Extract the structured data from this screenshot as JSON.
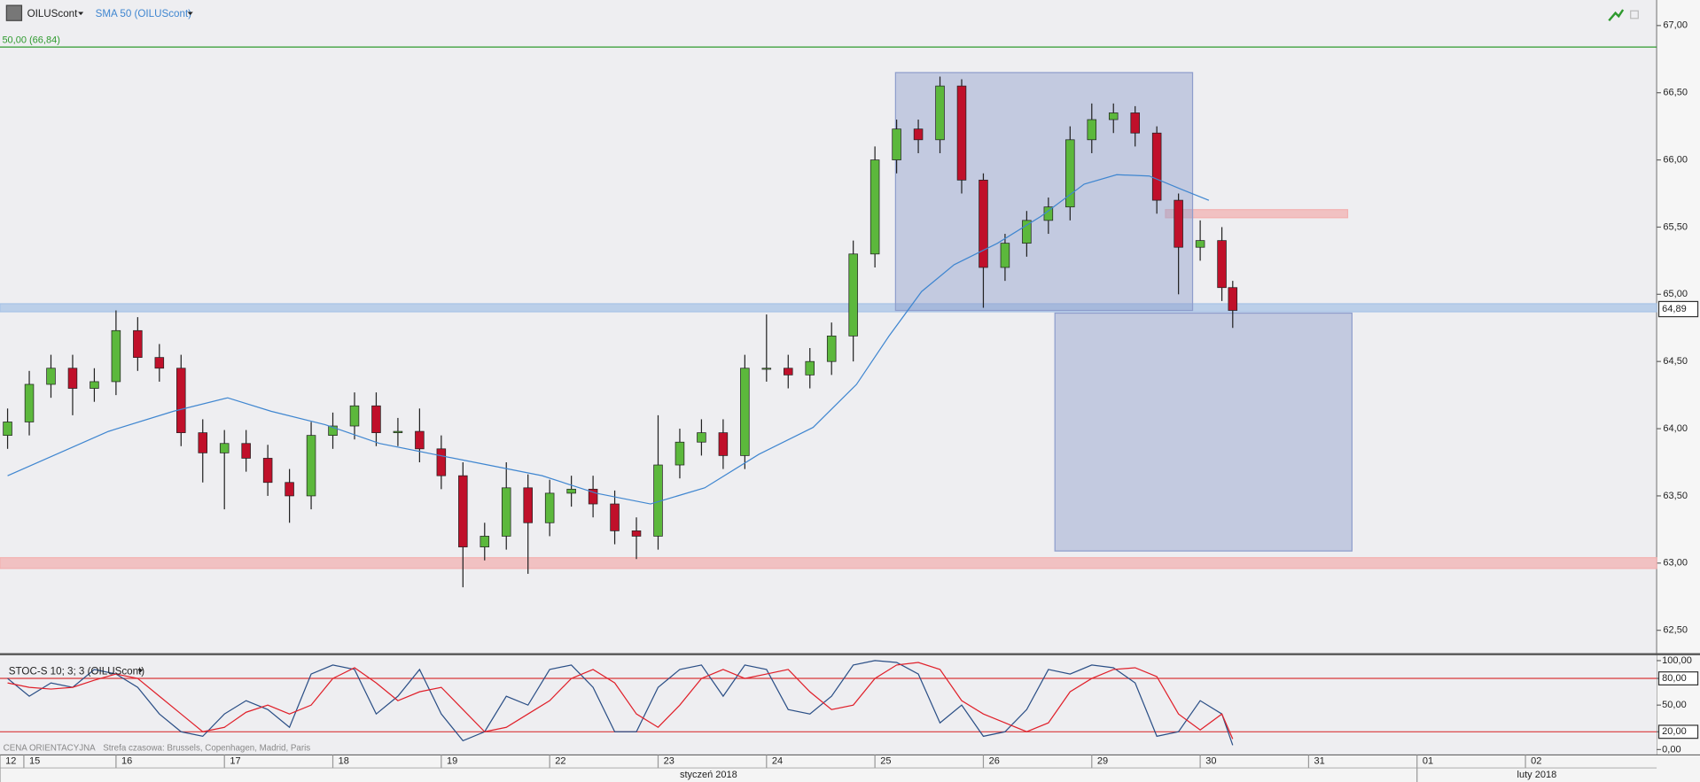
{
  "toolbar": {
    "symbol": "OILUScont"
  },
  "footer": {
    "price_note": "CENA ORIENTACYJNA",
    "timezone": "Strefa czasowa: Brussels, Copenhagen, Madrid, Paris"
  },
  "chart_data": [
    {
      "type": "candlestick",
      "xlim": [
        -0.07,
        15.21
      ],
      "ylim": [
        62.33,
        67.19
      ],
      "yticks": [
        {
          "value": 67,
          "label": "67,00"
        },
        {
          "value": 66.5,
          "label": "66,50"
        },
        {
          "value": 66,
          "label": "66,00"
        },
        {
          "value": 65.5,
          "label": "65,50"
        },
        {
          "value": 65,
          "label": "65,00"
        },
        {
          "value": 64.5,
          "label": "64,50"
        },
        {
          "value": 64,
          "label": "64,00"
        },
        {
          "value": 63.5,
          "label": "63,50"
        },
        {
          "value": 63,
          "label": "63,00"
        },
        {
          "value": 62.5,
          "label": "62,50"
        }
      ],
      "last_price": {
        "value": 64.89,
        "label": "64,89"
      },
      "series": [
        {
          "name": "OILUScont",
          "type": "candlestick",
          "up_color": "#5cb83c",
          "down_color": "#c0102a",
          "x": [
            0,
            0.2,
            0.4,
            0.6,
            0.8,
            1,
            1.2,
            1.4,
            1.6,
            1.8,
            2,
            2.2,
            2.4,
            2.6,
            2.8,
            3,
            3.2,
            3.4,
            3.6,
            3.8,
            4,
            4.2,
            4.4,
            4.6,
            4.8,
            5,
            5.2,
            5.4,
            5.6,
            5.8,
            6,
            6.2,
            6.4,
            6.6,
            6.8,
            7,
            7.2,
            7.4,
            7.6,
            7.8,
            8,
            8.2,
            8.4,
            8.6,
            8.8,
            9,
            9.2,
            9.4,
            9.6,
            9.8,
            10,
            10.2,
            10.4,
            10.6,
            10.8,
            11,
            11.2,
            11.3
          ],
          "open": [
            63.95,
            64.05,
            64.33,
            64.45,
            64.3,
            64.35,
            64.73,
            64.53,
            64.45,
            63.97,
            63.82,
            63.89,
            63.78,
            63.6,
            63.5,
            63.95,
            64.02,
            64.17,
            63.97,
            63.98,
            63.85,
            63.65,
            63.12,
            63.2,
            63.56,
            63.3,
            63.52,
            63.55,
            63.44,
            63.24,
            63.2,
            63.73,
            63.9,
            63.97,
            63.8,
            64.45,
            64.45,
            64.4,
            64.5,
            64.69,
            65.3,
            66.0,
            66.23,
            66.15,
            66.55,
            65.85,
            65.2,
            65.38,
            65.55,
            65.65,
            66.15,
            66.3,
            66.35,
            66.2,
            65.7,
            65.35,
            65.4,
            65.05
          ],
          "high": [
            64.15,
            64.43,
            64.55,
            64.55,
            64.45,
            64.88,
            64.83,
            64.63,
            64.55,
            64.07,
            63.99,
            63.99,
            63.88,
            63.7,
            64.05,
            64.12,
            64.27,
            64.27,
            64.08,
            64.15,
            63.95,
            63.75,
            63.3,
            63.75,
            63.66,
            63.62,
            63.65,
            63.65,
            63.54,
            63.34,
            64.1,
            64.0,
            64.07,
            64.07,
            64.55,
            64.85,
            64.55,
            64.6,
            64.79,
            65.4,
            66.1,
            66.3,
            66.3,
            66.62,
            66.6,
            65.9,
            65.45,
            65.62,
            65.72,
            66.25,
            66.42,
            66.42,
            66.4,
            66.25,
            65.75,
            65.55,
            65.5,
            65.1
          ],
          "low": [
            63.85,
            63.95,
            64.23,
            64.1,
            64.2,
            64.25,
            64.43,
            64.35,
            63.87,
            63.6,
            63.4,
            63.68,
            63.5,
            63.3,
            63.4,
            63.85,
            63.92,
            63.87,
            63.87,
            63.75,
            63.55,
            62.82,
            63.02,
            63.1,
            62.92,
            63.2,
            63.42,
            63.34,
            63.14,
            63.03,
            63.1,
            63.63,
            63.8,
            63.7,
            63.7,
            64.35,
            64.3,
            64.3,
            64.4,
            64.5,
            65.2,
            65.9,
            66.05,
            66.05,
            65.75,
            64.9,
            65.1,
            65.28,
            65.45,
            65.55,
            66.05,
            66.2,
            66.1,
            65.6,
            65.0,
            65.25,
            64.95,
            64.75
          ],
          "close": [
            64.05,
            64.33,
            64.45,
            64.3,
            64.35,
            64.73,
            64.53,
            64.45,
            63.97,
            63.82,
            63.89,
            63.78,
            63.6,
            63.5,
            63.95,
            64.02,
            64.17,
            63.97,
            63.98,
            63.85,
            63.65,
            63.12,
            63.2,
            63.56,
            63.3,
            63.52,
            63.55,
            63.44,
            63.24,
            63.2,
            63.73,
            63.9,
            63.97,
            63.8,
            64.45,
            64.45,
            64.4,
            64.5,
            64.69,
            65.3,
            66.0,
            66.23,
            66.15,
            66.55,
            65.85,
            65.2,
            65.38,
            65.55,
            65.65,
            66.15,
            66.3,
            66.35,
            66.2,
            65.7,
            65.35,
            65.4,
            65.05,
            64.88
          ]
        },
        {
          "name": "SMA 50 (OILUScont)",
          "type": "line",
          "color": "#3f86d0",
          "x": [
            0,
            0.93,
            1.53,
            2.03,
            2.43,
            2.93,
            3.43,
            3.93,
            4.43,
            4.93,
            5.43,
            5.93,
            6.43,
            6.93,
            7.43,
            7.83,
            8.13,
            8.43,
            8.73,
            9.13,
            9.53,
            9.93,
            10.23,
            10.53,
            10.83,
            11.08
          ],
          "values": [
            63.65,
            63.98,
            64.13,
            64.23,
            64.13,
            64.03,
            63.89,
            63.81,
            63.73,
            63.65,
            63.52,
            63.44,
            63.56,
            63.81,
            64.01,
            64.33,
            64.69,
            65.02,
            65.22,
            65.38,
            65.58,
            65.82,
            65.89,
            65.88,
            65.78,
            65.7
          ]
        }
      ],
      "hlines": [
        {
          "value": 66.84,
          "label": "50,00 (66,84)",
          "color": "#2e9a2e"
        }
      ],
      "bands": [
        {
          "y": [
            64.87,
            64.93
          ],
          "color": "#a9c4e6"
        },
        {
          "y": [
            62.96,
            63.04
          ],
          "color": "#f2b1b1"
        },
        {
          "x": [
            10.68,
            12.36
          ],
          "y": [
            65.57,
            65.63
          ],
          "color": "#f2b1b1"
        }
      ],
      "zones": [
        {
          "x": [
            8.19,
            10.93
          ],
          "y": [
            64.88,
            66.65
          ]
        },
        {
          "x": [
            9.66,
            12.4
          ],
          "y": [
            63.09,
            64.86
          ]
        }
      ],
      "zone_color": "#8e9dcc"
    },
    {
      "type": "line",
      "title": "STOC-S 10; 3; 3 (OILUScont)",
      "xlim": [
        -0.07,
        15.21
      ],
      "ylim": [
        -6,
        106
      ],
      "yticks": [
        {
          "value": 100,
          "label": "100,00"
        },
        {
          "value": 80,
          "label": "80,00"
        },
        {
          "value": 50,
          "label": "50,00"
        },
        {
          "value": 20,
          "label": "20,00"
        },
        {
          "value": 0,
          "label": "0,00"
        }
      ],
      "levels": [
        80,
        20
      ],
      "level_color": "#d9383a",
      "x": [
        0,
        0.2,
        0.4,
        0.6,
        0.8,
        1,
        1.2,
        1.4,
        1.6,
        1.8,
        2,
        2.2,
        2.4,
        2.6,
        2.8,
        3,
        3.2,
        3.4,
        3.6,
        3.8,
        4,
        4.2,
        4.4,
        4.6,
        4.8,
        5,
        5.2,
        5.4,
        5.6,
        5.8,
        6,
        6.2,
        6.4,
        6.6,
        6.8,
        7,
        7.2,
        7.4,
        7.6,
        7.8,
        8,
        8.2,
        8.4,
        8.6,
        8.8,
        9,
        9.2,
        9.4,
        9.6,
        9.8,
        10,
        10.2,
        10.4,
        10.6,
        10.8,
        11,
        11.2,
        11.3
      ],
      "series": [
        {
          "color": "#2b4f86",
          "values": [
            80,
            60,
            75,
            70,
            90,
            85,
            70,
            40,
            20,
            15,
            40,
            55,
            45,
            25,
            85,
            95,
            90,
            40,
            60,
            90,
            40,
            10,
            20,
            60,
            50,
            90,
            95,
            70,
            20,
            20,
            70,
            90,
            95,
            60,
            95,
            90,
            45,
            40,
            60,
            95,
            100,
            98,
            85,
            30,
            50,
            15,
            20,
            45,
            90,
            85,
            95,
            92,
            75,
            15,
            20,
            55,
            40,
            5
          ]
        },
        {
          "color": "#e0202a",
          "values": [
            75,
            70,
            68,
            70,
            78,
            85,
            80,
            60,
            40,
            20,
            25,
            42,
            50,
            40,
            50,
            80,
            92,
            75,
            55,
            65,
            70,
            45,
            20,
            25,
            40,
            55,
            80,
            90,
            75,
            40,
            25,
            50,
            80,
            90,
            80,
            85,
            90,
            65,
            45,
            50,
            80,
            95,
            98,
            90,
            55,
            40,
            30,
            20,
            30,
            65,
            80,
            90,
            92,
            82,
            40,
            22,
            40,
            12
          ]
        }
      ],
      "xticks": [
        {
          "value": -0.07,
          "label": "12"
        },
        {
          "value": 0.15,
          "label": "15"
        },
        {
          "value": 1,
          "label": "16"
        },
        {
          "value": 2,
          "label": "17"
        },
        {
          "value": 3,
          "label": "18"
        },
        {
          "value": 4,
          "label": "19"
        },
        {
          "value": 5,
          "label": "22"
        },
        {
          "value": 6,
          "label": "23"
        },
        {
          "value": 7,
          "label": "24"
        },
        {
          "value": 8,
          "label": "25"
        },
        {
          "value": 9,
          "label": "26"
        },
        {
          "value": 10,
          "label": "29"
        },
        {
          "value": 11,
          "label": "30"
        },
        {
          "value": 12,
          "label": "31"
        },
        {
          "value": 13,
          "label": "01"
        },
        {
          "value": 14,
          "label": "02"
        }
      ],
      "xticks_major": [
        {
          "value": -0.07,
          "label": "styczeń 2018"
        },
        {
          "value": 13,
          "label": "luty 2018"
        }
      ]
    }
  ]
}
